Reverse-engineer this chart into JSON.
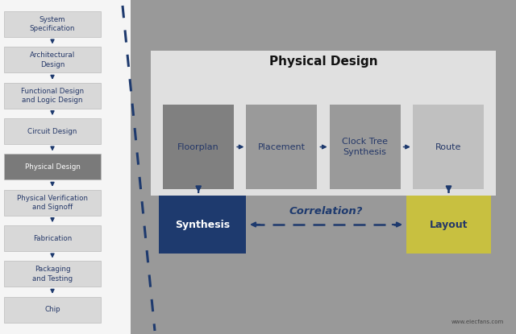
{
  "bg_color": "#e8e8e8",
  "left_bg": "#f5f5f5",
  "right_bg": "#999999",
  "left_boxes": [
    {
      "label": "System\nSpecification",
      "color": "#d8d8d8",
      "text_color": "#253868"
    },
    {
      "label": "Architectural\nDesign",
      "color": "#d8d8d8",
      "text_color": "#253868"
    },
    {
      "label": "Functional Design\nand Logic Design",
      "color": "#d8d8d8",
      "text_color": "#253868"
    },
    {
      "label": "Circuit Design",
      "color": "#d8d8d8",
      "text_color": "#253868"
    },
    {
      "label": "Physical Design",
      "color": "#7a7a7a",
      "text_color": "#ffffff"
    },
    {
      "label": "Physical Verification\nand Signoff",
      "color": "#d8d8d8",
      "text_color": "#253868"
    },
    {
      "label": "Fabrication",
      "color": "#d8d8d8",
      "text_color": "#253868"
    },
    {
      "label": "Packaging\nand Testing",
      "color": "#d8d8d8",
      "text_color": "#253868"
    },
    {
      "label": "Chip",
      "color": "#d8d8d8",
      "text_color": "#253868"
    }
  ],
  "arrow_color": "#1e3a6e",
  "dashed_sep_color": "#1e3a6e",
  "phys_design_panel_color": "#e0e0e0",
  "phys_design_title": "Physical Design",
  "phys_design_title_color": "#111111",
  "phys_boxes": [
    {
      "label": "Floorplan",
      "color": "#808080"
    },
    {
      "label": "Placement",
      "color": "#9a9a9a"
    },
    {
      "label": "Clock Tree\nSynthesis",
      "color": "#9a9a9a"
    },
    {
      "label": "Route",
      "color": "#c0c0c0"
    }
  ],
  "phys_box_text_color": "#253868",
  "synthesis_label": "Synthesis",
  "synthesis_color": "#1e3a6e",
  "synthesis_text_color": "#ffffff",
  "layout_label": "Layout",
  "layout_color": "#c8c040",
  "layout_text_color": "#253868",
  "correlation_text": "Correlation?",
  "correlation_text_color": "#1e3a6e",
  "watermark": "www.elecfans.com"
}
